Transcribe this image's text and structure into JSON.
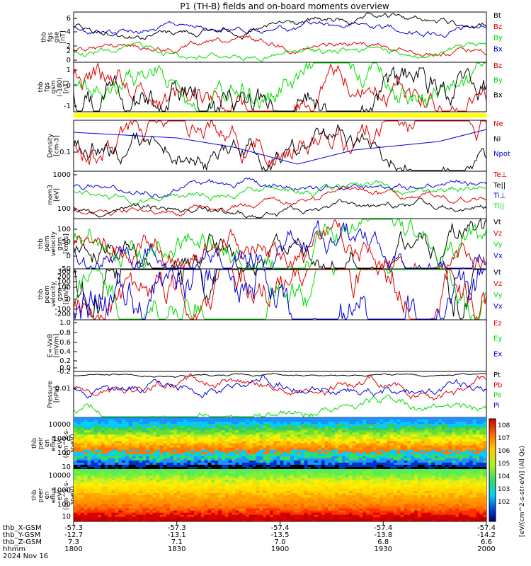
{
  "title": "P1 (TH-B) fields and on-board moments overview",
  "colors": {
    "black": "#000000",
    "red": "#e00000",
    "green": "#00dd00",
    "blue": "#0000dd",
    "yellow": "#ffff00"
  },
  "chart_data": [
    {
      "type": "line",
      "ylabel": [
        "thb",
        "fgs",
        "gse",
        "[nT]"
      ],
      "ylim": [
        0,
        7
      ],
      "yticks": [
        "0",
        "2",
        "4",
        "6"
      ],
      "legend": [
        {
          "name": "Bt",
          "color": "black"
        },
        {
          "name": "Bz",
          "color": "red"
        },
        {
          "name": "By",
          "color": "green"
        },
        {
          "name": "Bx",
          "color": "blue"
        }
      ]
    },
    {
      "type": "line",
      "ylabel": [
        "thb",
        "fgs",
        "gsm",
        "(-180)",
        "[nT]"
      ],
      "ylim": [
        -1.7,
        2.2
      ],
      "yticks": [
        "-1",
        "0",
        "1",
        "2"
      ],
      "legend": [
        {
          "name": "Bz",
          "color": "red"
        },
        {
          "name": "By",
          "color": "green"
        },
        {
          "name": "Bx",
          "color": "black"
        }
      ]
    },
    {
      "type": "line",
      "ylabel": [
        "Density",
        "[cm-3]"
      ],
      "yscale": "log",
      "yticks": [
        "0.1"
      ],
      "legend": [
        {
          "name": "Ne",
          "color": "red"
        },
        {
          "name": "Ni",
          "color": "black"
        },
        {
          "name": "Npot",
          "color": "blue"
        }
      ]
    },
    {
      "type": "line",
      "ylabel": [
        "mom3",
        "[eV]"
      ],
      "yscale": "log",
      "yticks": [
        "1000",
        "100"
      ],
      "legend": [
        {
          "name": "Te⊥",
          "color": "red"
        },
        {
          "name": "Te||",
          "color": "black"
        },
        {
          "name": "Ti⊥",
          "color": "blue"
        },
        {
          "name": "Ti||",
          "color": "green"
        }
      ]
    },
    {
      "type": "line",
      "ylabel": [
        "thb",
        "peim",
        "velocity",
        "gsm",
        "[km/s]"
      ],
      "ylim": [
        -130,
        130
      ],
      "yticks": [
        "100",
        "50",
        "0",
        "-50",
        "-100"
      ],
      "legend": [
        {
          "name": "Vt",
          "color": "black"
        },
        {
          "name": "Vz",
          "color": "red"
        },
        {
          "name": "Vy",
          "color": "green"
        },
        {
          "name": "Vx",
          "color": "blue"
        }
      ]
    },
    {
      "type": "line",
      "ylabel": [
        "thb",
        "peem",
        "velocity",
        "gsm",
        "[km/s]"
      ],
      "ylim": [
        -260,
        310
      ],
      "yticks": [
        "300",
        "200",
        "100",
        "0",
        "-100",
        "-200"
      ],
      "legend": [
        {
          "name": "Vt",
          "color": "black"
        },
        {
          "name": "Vz",
          "color": "red"
        },
        {
          "name": "Vy",
          "color": "green"
        },
        {
          "name": "Vx",
          "color": "blue"
        }
      ]
    },
    {
      "type": "line",
      "ylabel": [
        "E=-VxB",
        "[mV/m]"
      ],
      "ylim": [
        -0.2,
        1.0
      ],
      "yticks": [
        "1.0",
        "0.8",
        "0.6",
        "0.4",
        "0.2",
        "0.0",
        "-0.2"
      ],
      "legend": [
        {
          "name": "Ez",
          "color": "red"
        },
        {
          "name": "Ey",
          "color": "green"
        },
        {
          "name": "Ex",
          "color": "blue"
        }
      ]
    },
    {
      "type": "line",
      "ylabel": [
        "Pressure",
        "[nPa]"
      ],
      "yscale": "log",
      "yticks": [
        "0.01"
      ],
      "legend": [
        {
          "name": "Pt",
          "color": "black"
        },
        {
          "name": "Pb",
          "color": "red"
        },
        {
          "name": "Pe",
          "color": "green"
        },
        {
          "name": "Pi",
          "color": "blue"
        }
      ]
    },
    {
      "type": "heatmap",
      "ylabel": [
        "thb",
        "peir",
        "en",
        "eflux",
        "eV/",
        "(cm^2-s-",
        "sr-eV)"
      ],
      "yscale": "log",
      "yticks": [
        "10000",
        "1000",
        "100",
        "10"
      ]
    },
    {
      "type": "heatmap",
      "ylabel": [
        "thb",
        "peer",
        "en",
        "eflux",
        "eV/",
        "(cm^2-s-",
        "sr-eV)"
      ],
      "yscale": "log",
      "yticks": [
        "10000",
        "1000",
        "100",
        "10"
      ]
    }
  ],
  "colorbar": {
    "ticks": [
      "10^8",
      "10^7",
      "10^6",
      "10^5",
      "10^4",
      "10^3",
      "10^2"
    ],
    "label": "[eV/(cm^2-s-str-eV)] (All Qs)"
  },
  "xaxis": {
    "rows": [
      {
        "label": "thb_X-GSM",
        "values": [
          "-57.3",
          "-57.3",
          "-57.4",
          "-57.4",
          "-57.4"
        ]
      },
      {
        "label": "thb_Y-GSM",
        "values": [
          "-12.7",
          "-13.1",
          "-13.5",
          "-13.8",
          "-14.2"
        ]
      },
      {
        "label": "thb_Z-GSM",
        "values": [
          "7.3",
          "7.1",
          "7.0",
          "6.8",
          "6.6"
        ]
      },
      {
        "label": "hhmm",
        "values": [
          "1800",
          "1830",
          "1900",
          "1930",
          "2000"
        ]
      }
    ],
    "date": "2024 Nov 16"
  }
}
